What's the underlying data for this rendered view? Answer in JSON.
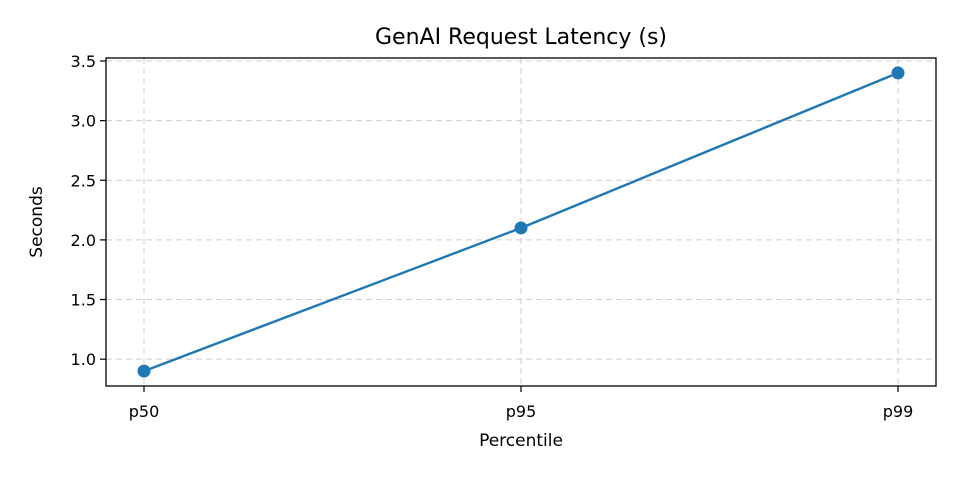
{
  "chart_data": {
    "type": "line",
    "title": "GenAI Request Latency (s)",
    "xlabel": "Percentile",
    "ylabel": "Seconds",
    "categories": [
      "p50",
      "p95",
      "p99"
    ],
    "series": [
      {
        "values": [
          0.9,
          2.1,
          3.4
        ],
        "color": "#1f77b4",
        "marker": "circle"
      }
    ],
    "ylim": [
      0.775,
      3.525
    ],
    "yticks": [
      1.0,
      1.5,
      2.0,
      2.5,
      3.0,
      3.5
    ],
    "ytick_labels": [
      "1.0",
      "1.5",
      "2.0",
      "2.5",
      "3.0",
      "3.5"
    ],
    "grid": true,
    "grid_style": "dashed"
  }
}
